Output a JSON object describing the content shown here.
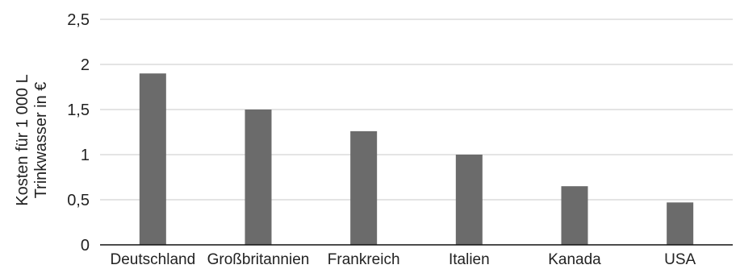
{
  "chart_data": {
    "type": "bar",
    "title": "",
    "xlabel": "",
    "ylabel_lines": [
      "Kosten für 1 000 L",
      "Trinkwasser in €"
    ],
    "categories": [
      "Deutschland",
      "Großbritannien",
      "Frankreich",
      "Italien",
      "Kanada",
      "USA"
    ],
    "values": [
      1.9,
      1.5,
      1.26,
      1.0,
      0.65,
      0.47
    ],
    "ylim": [
      0,
      2.5
    ],
    "yticks": [
      0,
      0.5,
      1,
      1.5,
      2,
      2.5
    ],
    "ytick_labels": [
      "0",
      "0,5",
      "1",
      "1,5",
      "2",
      "2,5"
    ],
    "grid": true,
    "legend": "none",
    "bar_color": "#6b6b6b",
    "grid_color": "#c8c8c8",
    "axis_color": "#111111"
  }
}
